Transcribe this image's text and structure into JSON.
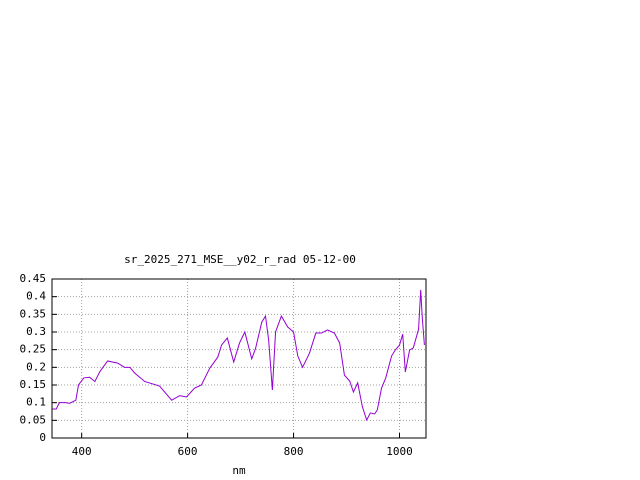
{
  "chart_data": {
    "type": "line",
    "title": "sr_2025_271_MSE__y02_r_rad 05-12-00",
    "x_label": "nm",
    "color": "#9400d3",
    "grid": true,
    "xlim": [
      344,
      1050
    ],
    "ylim": [
      0,
      0.45
    ],
    "xticks": [
      400,
      600,
      800,
      1000
    ],
    "yticks": [
      0,
      0.05,
      0.1,
      0.15,
      0.2,
      0.25,
      0.3,
      0.35,
      0.4,
      0.45
    ],
    "x": [
      345,
      352,
      358,
      370,
      377,
      389,
      394,
      404,
      415,
      425,
      434,
      449,
      468,
      481,
      491,
      500,
      519,
      547,
      570,
      585,
      598,
      613,
      626,
      642,
      657,
      664,
      675,
      687,
      698,
      708,
      721,
      728,
      740,
      747,
      753,
      760,
      766,
      777,
      789,
      800,
      808,
      817,
      830,
      842,
      853,
      864,
      877,
      887,
      896,
      906,
      913,
      921,
      930,
      938,
      945,
      953,
      958,
      966,
      974,
      985,
      992,
      1000,
      1006,
      1011,
      1019,
      1026,
      1036,
      1040,
      1043,
      1047
    ],
    "values": [
      0.082,
      0.082,
      0.1,
      0.1,
      0.098,
      0.107,
      0.15,
      0.17,
      0.172,
      0.16,
      0.187,
      0.218,
      0.212,
      0.2,
      0.2,
      0.184,
      0.16,
      0.147,
      0.107,
      0.12,
      0.116,
      0.141,
      0.15,
      0.198,
      0.229,
      0.263,
      0.283,
      0.215,
      0.269,
      0.3,
      0.224,
      0.252,
      0.328,
      0.345,
      0.277,
      0.136,
      0.3,
      0.345,
      0.314,
      0.3,
      0.232,
      0.2,
      0.24,
      0.297,
      0.297,
      0.306,
      0.297,
      0.269,
      0.178,
      0.161,
      0.13,
      0.156,
      0.088,
      0.051,
      0.071,
      0.068,
      0.079,
      0.141,
      0.17,
      0.232,
      0.249,
      0.263,
      0.294,
      0.187,
      0.249,
      0.255,
      0.308,
      0.419,
      0.34,
      0.263
    ]
  }
}
